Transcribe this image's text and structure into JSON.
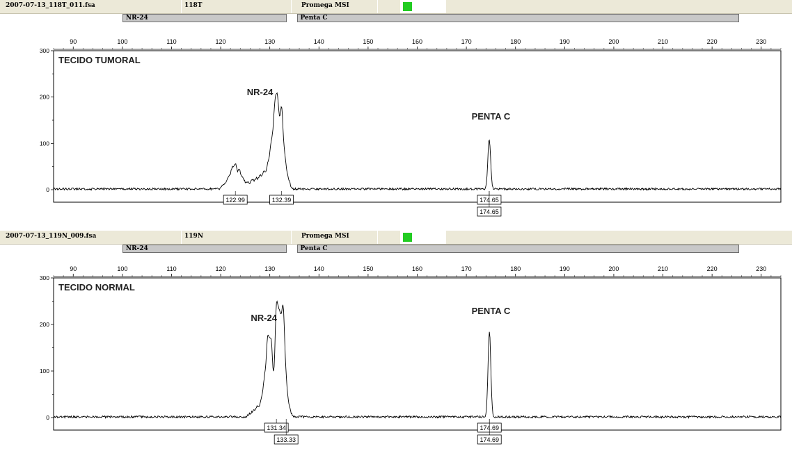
{
  "panels": [
    {
      "header": {
        "filename": "2007-07-13_118T_011.fsa",
        "sample": "118T",
        "panel_name": "Promega MSI",
        "status_color": "#22cc22"
      },
      "markers": [
        {
          "label": "NR-24",
          "start": 100,
          "end": 133.5
        },
        {
          "label": "Penta C",
          "start": 135.5,
          "end": 225.5
        }
      ],
      "annotations": {
        "sample_label": "TECIDO TUMORAL",
        "peak_label_1": "NR-24",
        "peak_label_2": "PENTA C"
      },
      "allele_calls": [
        {
          "size": "122.99",
          "x": 122.99,
          "row": 1
        },
        {
          "size": "132.39",
          "x": 132.39,
          "row": 1
        },
        {
          "size": "174.65",
          "x": 174.65,
          "row": 1
        },
        {
          "size": "174.65",
          "x": 174.65,
          "row": 2
        }
      ]
    },
    {
      "header": {
        "filename": "2007-07-13_119N_009.fsa",
        "sample": "119N",
        "panel_name": "Promega MSI",
        "status_color": "#22cc22"
      },
      "markers": [
        {
          "label": "NR-24",
          "start": 100,
          "end": 133.5
        },
        {
          "label": "Penta C",
          "start": 135.5,
          "end": 225.5
        }
      ],
      "annotations": {
        "sample_label": "TECIDO NORMAL",
        "peak_label_1": "NR-24",
        "peak_label_2": "PENTA C"
      },
      "allele_calls": [
        {
          "size": "131.34",
          "x": 131.34,
          "row": 1
        },
        {
          "size": "133.33",
          "x": 133.33,
          "row": 2
        },
        {
          "size": "174.69",
          "x": 174.69,
          "row": 1
        },
        {
          "size": "174.69",
          "x": 174.69,
          "row": 2
        }
      ]
    }
  ],
  "chart_data": [
    {
      "type": "line",
      "title": "TECIDO TUMORAL",
      "xlim": [
        86,
        234
      ],
      "ylim": [
        0,
        300
      ],
      "x_ticks": [
        90,
        100,
        110,
        120,
        130,
        140,
        150,
        160,
        170,
        180,
        190,
        200,
        210,
        220,
        230
      ],
      "y_ticks": [
        0,
        100,
        200,
        300
      ],
      "grid": false,
      "peaks": [
        {
          "x": 120.6,
          "y": 10
        },
        {
          "x": 121.5,
          "y": 25
        },
        {
          "x": 122.3,
          "y": 40
        },
        {
          "x": 122.99,
          "y": 50
        },
        {
          "x": 123.8,
          "y": 38
        },
        {
          "x": 124.6,
          "y": 22
        },
        {
          "x": 125.5,
          "y": 14
        },
        {
          "x": 126.4,
          "y": 18
        },
        {
          "x": 127.2,
          "y": 22
        },
        {
          "x": 128.0,
          "y": 28
        },
        {
          "x": 128.8,
          "y": 35
        },
        {
          "x": 129.6,
          "y": 48
        },
        {
          "x": 130.3,
          "y": 85
        },
        {
          "x": 131.0,
          "y": 150
        },
        {
          "x": 131.6,
          "y": 165
        },
        {
          "x": 132.39,
          "y": 165
        },
        {
          "x": 133.1,
          "y": 55
        },
        {
          "x": 133.8,
          "y": 18
        },
        {
          "x": 174.65,
          "y": 108
        }
      ]
    },
    {
      "type": "line",
      "title": "TECIDO NORMAL",
      "xlim": [
        86,
        234
      ],
      "ylim": [
        0,
        300
      ],
      "x_ticks": [
        90,
        100,
        110,
        120,
        130,
        140,
        150,
        160,
        170,
        180,
        190,
        200,
        210,
        220,
        230
      ],
      "y_ticks": [
        0,
        100,
        200,
        300
      ],
      "grid": false,
      "peaks": [
        {
          "x": 125.8,
          "y": 6
        },
        {
          "x": 126.6,
          "y": 12
        },
        {
          "x": 127.4,
          "y": 20
        },
        {
          "x": 128.2,
          "y": 30
        },
        {
          "x": 128.9,
          "y": 70
        },
        {
          "x": 129.6,
          "y": 155
        },
        {
          "x": 130.3,
          "y": 150
        },
        {
          "x": 131.34,
          "y": 220
        },
        {
          "x": 132.0,
          "y": 185
        },
        {
          "x": 132.7,
          "y": 215
        },
        {
          "x": 133.33,
          "y": 60
        },
        {
          "x": 134.0,
          "y": 15
        },
        {
          "x": 174.69,
          "y": 182
        }
      ]
    }
  ]
}
